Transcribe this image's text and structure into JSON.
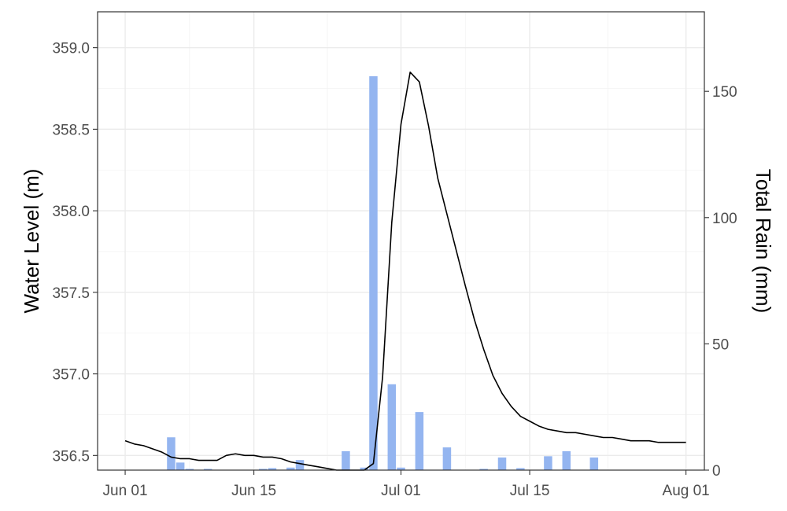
{
  "chart_data": {
    "type": "bar+line",
    "title": "",
    "xlabel": "",
    "ylabel_left": "Water Level (m)",
    "ylabel_right": "Total Rain (mm)",
    "x_ticks": [
      "2023-06-01",
      "2023-06-15",
      "2023-07-01",
      "2023-07-15",
      "2023-08-01"
    ],
    "x_tick_labels": [
      "Jun 01",
      "Jun 15",
      "Jul 01",
      "Jul 15",
      "Aug 01"
    ],
    "xlim": [
      "2023-05-29",
      "2023-08-03"
    ],
    "ylim_left": [
      356.41,
      359.22
    ],
    "yticks_left": [
      356.5,
      357.0,
      357.5,
      358.0,
      358.5,
      359.0
    ],
    "ytick_labels_left": [
      "356.5",
      "357.0",
      "357.5",
      "358.0",
      "358.5",
      "359.0"
    ],
    "ylim_right": [
      0,
      181.5
    ],
    "yticks_right": [
      0,
      50,
      100,
      150
    ],
    "ytick_labels_right": [
      "0",
      "50",
      "100",
      "150"
    ],
    "grid": true,
    "colors": {
      "bar": "#94b5f0",
      "line": "#000000"
    },
    "series": [
      {
        "type": "bar",
        "axis": "right",
        "x": [
          "2023-06-06",
          "2023-06-07",
          "2023-06-08",
          "2023-06-10",
          "2023-06-16",
          "2023-06-17",
          "2023-06-19",
          "2023-06-20",
          "2023-06-25",
          "2023-06-27",
          "2023-06-28",
          "2023-06-30",
          "2023-07-01",
          "2023-07-03",
          "2023-07-06",
          "2023-07-10",
          "2023-07-12",
          "2023-07-14",
          "2023-07-17",
          "2023-07-19",
          "2023-07-22"
        ],
        "values": [
          13,
          3,
          0.5,
          0.5,
          0.5,
          0.8,
          1,
          4,
          7.5,
          1,
          156,
          34,
          1,
          23,
          9,
          0.5,
          5,
          0.8,
          5.5,
          7.5,
          5
        ]
      },
      {
        "type": "line",
        "axis": "left",
        "x": [
          "2023-06-01",
          "2023-06-02",
          "2023-06-03",
          "2023-06-04",
          "2023-06-05",
          "2023-06-06",
          "2023-06-07",
          "2023-06-08",
          "2023-06-09",
          "2023-06-10",
          "2023-06-11",
          "2023-06-12",
          "2023-06-13",
          "2023-06-14",
          "2023-06-15",
          "2023-06-16",
          "2023-06-17",
          "2023-06-18",
          "2023-06-19",
          "2023-06-20",
          "2023-06-21",
          "2023-06-22",
          "2023-06-23",
          "2023-06-24",
          "2023-06-25",
          "2023-06-26",
          "2023-06-27",
          "2023-06-28",
          "2023-06-29",
          "2023-06-30",
          "2023-07-01",
          "2023-07-02",
          "2023-07-03",
          "2023-07-04",
          "2023-07-05",
          "2023-07-06",
          "2023-07-07",
          "2023-07-08",
          "2023-07-09",
          "2023-07-10",
          "2023-07-11",
          "2023-07-12",
          "2023-07-13",
          "2023-07-14",
          "2023-07-15",
          "2023-07-16",
          "2023-07-17",
          "2023-07-18",
          "2023-07-19",
          "2023-07-20",
          "2023-07-21",
          "2023-07-22",
          "2023-07-23",
          "2023-07-24",
          "2023-07-25",
          "2023-07-26",
          "2023-07-27",
          "2023-07-28",
          "2023-07-29",
          "2023-07-30",
          "2023-07-31",
          "2023-08-01"
        ],
        "values": [
          356.59,
          356.57,
          356.56,
          356.54,
          356.52,
          356.49,
          356.48,
          356.48,
          356.47,
          356.47,
          356.47,
          356.5,
          356.51,
          356.5,
          356.5,
          356.49,
          356.49,
          356.48,
          356.46,
          356.45,
          356.44,
          356.43,
          356.42,
          356.41,
          356.41,
          356.41,
          356.41,
          356.45,
          356.98,
          357.93,
          358.53,
          358.85,
          358.79,
          358.52,
          358.2,
          357.98,
          357.76,
          357.54,
          357.33,
          357.15,
          356.99,
          356.88,
          356.8,
          356.74,
          356.71,
          356.68,
          356.66,
          356.65,
          356.64,
          356.64,
          356.63,
          356.62,
          356.61,
          356.61,
          356.6,
          356.59,
          356.59,
          356.59,
          356.58,
          356.58,
          356.58,
          356.58
        ]
      }
    ]
  }
}
